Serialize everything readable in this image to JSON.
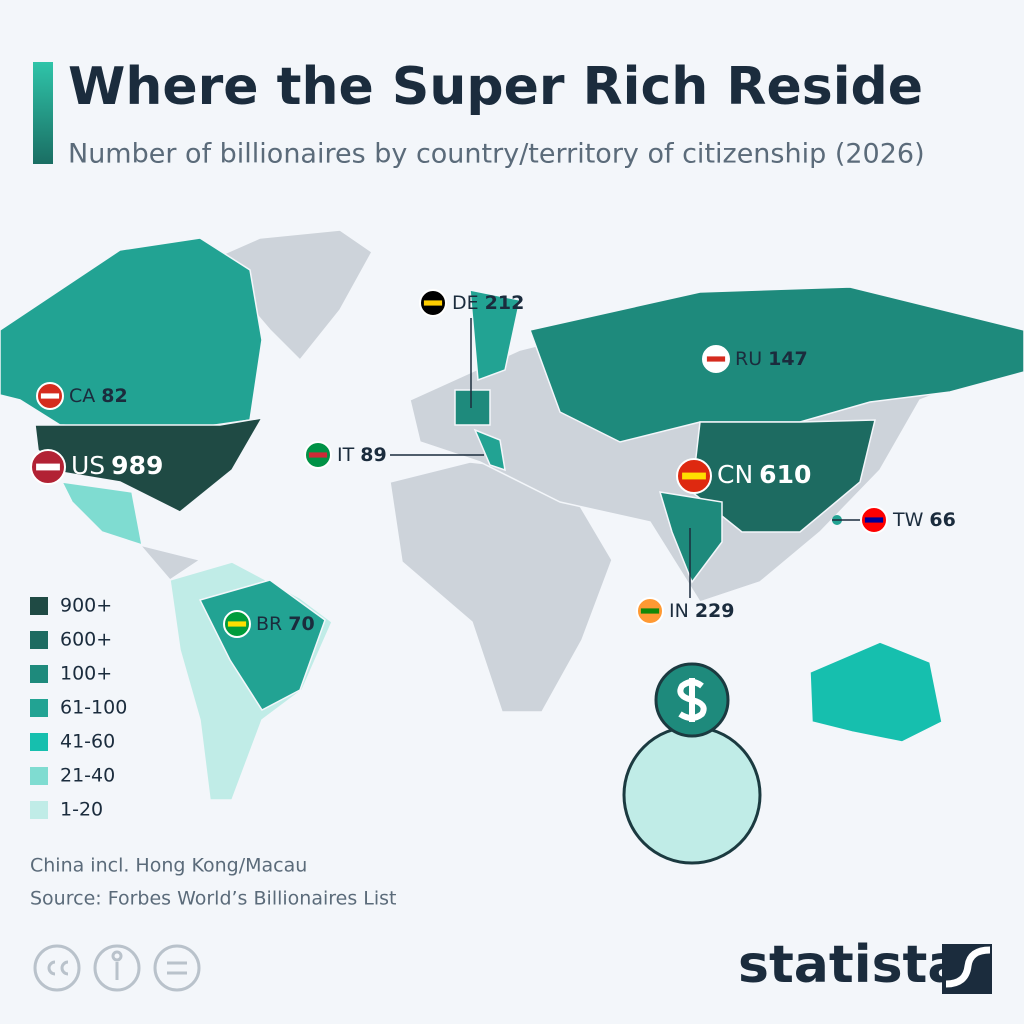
{
  "header": {
    "title": "Where the Super Rich Reside",
    "subtitle": "Number of billionaires by country/territory of citizenship (2026)"
  },
  "countries": [
    {
      "code": "US",
      "value": 989
    },
    {
      "code": "CN",
      "value": 610
    },
    {
      "code": "IN",
      "value": 229
    },
    {
      "code": "DE",
      "value": 212
    },
    {
      "code": "RU",
      "value": 147
    },
    {
      "code": "IT",
      "value": 89
    },
    {
      "code": "CA",
      "value": 82
    },
    {
      "code": "BR",
      "value": 70
    },
    {
      "code": "TW",
      "value": 66
    }
  ],
  "legend": [
    {
      "label": "900+",
      "color": "#1f4a44"
    },
    {
      "label": "600+",
      "color": "#1d6b61"
    },
    {
      "label": "100+",
      "color": "#1e8a7c"
    },
    {
      "label": "61-100",
      "color": "#22a393"
    },
    {
      "label": "41-60",
      "color": "#16bfae"
    },
    {
      "label": "21-40",
      "color": "#7fdcd1"
    },
    {
      "label": "1-20",
      "color": "#c0ece7"
    }
  ],
  "notes": [
    "China incl. Hong Kong/Macau",
    "Source: Forbes World’s Billionaires List"
  ],
  "brand": "statista"
}
